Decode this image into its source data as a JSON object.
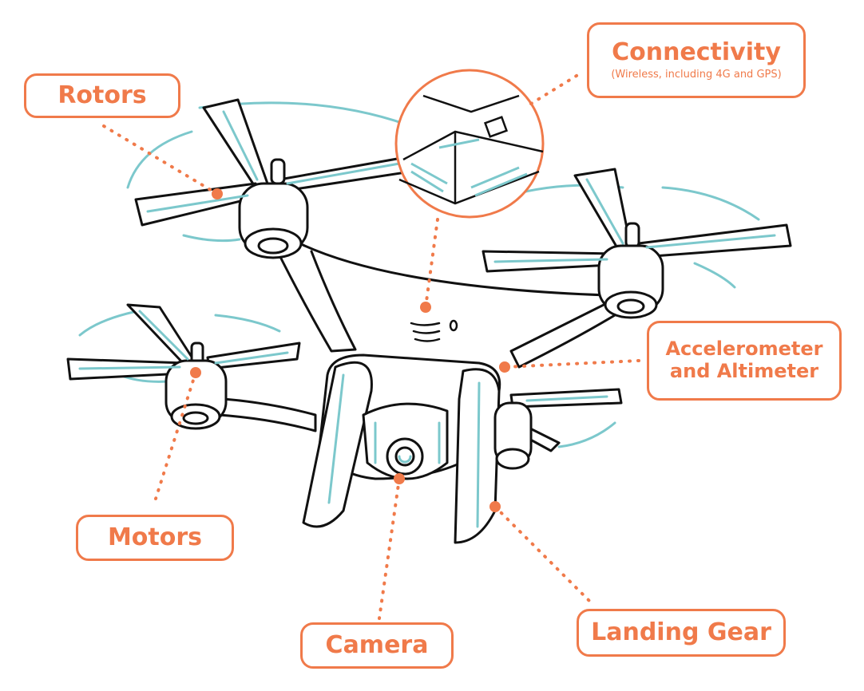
{
  "labels": {
    "connectivity": {
      "title": "Connectivity",
      "subtitle": "(Wireless, including 4G and GPS)"
    },
    "rotors": "Rotors",
    "accelerometer": {
      "line1": "Accelerometer",
      "line2": "and Altimeter"
    },
    "motors": "Motors",
    "camera": "Camera",
    "landing_gear": "Landing Gear"
  },
  "colors": {
    "accent": "#f07a4a",
    "outline": "#111111",
    "highlight": "#7cc8cc",
    "background": "#ffffff"
  }
}
